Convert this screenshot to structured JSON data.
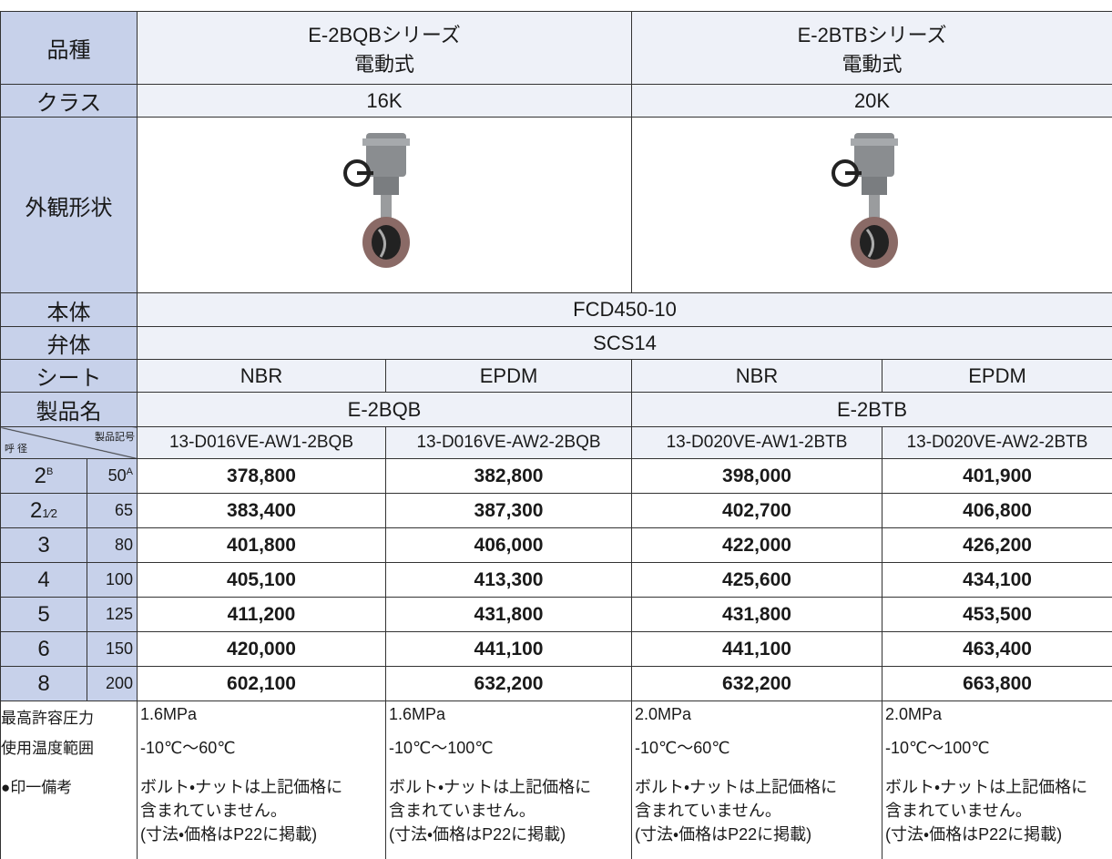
{
  "table": {
    "variety": {
      "label": "品種",
      "series": [
        {
          "name": "E-2BQBシリーズ",
          "drive": "電動式"
        },
        {
          "name": "E-2BTBシリーズ",
          "drive": "電動式"
        }
      ]
    },
    "class": {
      "label": "クラス",
      "values": [
        "16K",
        "20K"
      ]
    },
    "appearance": {
      "label": "外観形状"
    },
    "body": {
      "label": "本体",
      "value": "FCD450-10"
    },
    "disc": {
      "label": "弁体",
      "value": "SCS14"
    },
    "seat": {
      "label": "シート",
      "values": [
        "NBR",
        "EPDM",
        "NBR",
        "EPDM"
      ]
    },
    "product_name": {
      "label": "製品名",
      "values": [
        "E-2BQB",
        "E-2BTB"
      ]
    },
    "code_header": {
      "size_label": "呼 径",
      "code_label": "製品記号",
      "codes": [
        "13-D016VE-AW1-2BQB",
        "13-D016VE-AW2-2BQB",
        "13-D020VE-AW1-2BTB",
        "13-D020VE-AW2-2BTB"
      ]
    },
    "rows": [
      {
        "inch": "2",
        "inch_sup": "B",
        "mm": "50",
        "mm_sup": "A",
        "prices": [
          "378,800",
          "382,800",
          "398,000",
          "401,900"
        ]
      },
      {
        "inch": "2",
        "inch_frac": "1⁄2",
        "mm": "65",
        "prices": [
          "383,400",
          "387,300",
          "402,700",
          "406,800"
        ]
      },
      {
        "inch": "3",
        "mm": "80",
        "prices": [
          "401,800",
          "406,000",
          "422,000",
          "426,200"
        ]
      },
      {
        "inch": "4",
        "mm": "100",
        "prices": [
          "405,100",
          "413,300",
          "425,600",
          "434,100"
        ]
      },
      {
        "inch": "5",
        "mm": "125",
        "prices": [
          "411,200",
          "431,800",
          "431,800",
          "453,500"
        ]
      },
      {
        "inch": "6",
        "mm": "150",
        "prices": [
          "420,000",
          "441,100",
          "441,100",
          "463,400"
        ]
      },
      {
        "inch": "8",
        "mm": "200",
        "prices": [
          "602,100",
          "632,200",
          "632,200",
          "663,800"
        ]
      }
    ],
    "pressure": {
      "label": "最高許容圧力",
      "values": [
        "1.6MPa",
        "1.6MPa",
        "2.0MPa",
        "2.0MPa"
      ]
    },
    "temperature": {
      "label": "使用温度範囲",
      "values": [
        "-10℃～60℃",
        "-10℃～100℃",
        "-10℃～60℃",
        "-10℃～100℃"
      ]
    },
    "remarks": {
      "label": "●印一備考",
      "values": [
        [
          "ボルト・ナットは上記価格に",
          "含まれていません。",
          "(寸法・価格はP22に掲載)"
        ],
        [
          "ボルト・ナットは上記価格に",
          "含まれていません。",
          "(寸法・価格はP22に掲載)"
        ],
        [
          "ボルト・ナットは上記価格に",
          "含まれていません。",
          "(寸法・価格はP22に掲載)"
        ],
        [
          "ボルト・ナットは上記価格に",
          "含まれていません。",
          "(寸法・価格はP22に掲載)"
        ]
      ]
    }
  }
}
